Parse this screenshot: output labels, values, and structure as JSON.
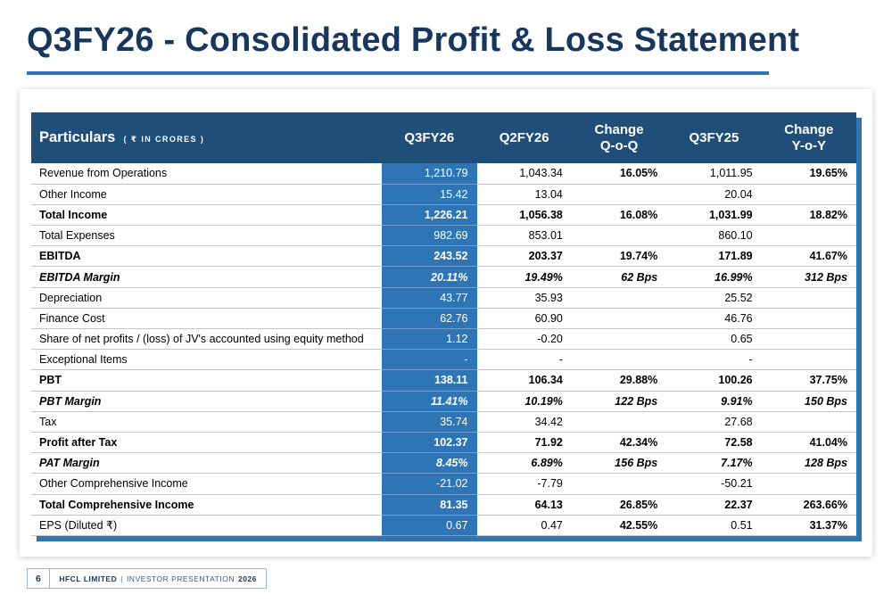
{
  "title": "Q3FY26 - Consolidated Profit & Loss Statement",
  "table": {
    "header": {
      "particulars": "Particulars",
      "unit": "( ₹ IN CRORES )",
      "columns": [
        "Q3FY26",
        "Q2FY26",
        "Change\nQ-o-Q",
        "Q3FY25",
        "Change\nY-o-Y"
      ]
    },
    "rows": [
      {
        "label": "Revenue from Operations",
        "q3fy26": "1,210.79",
        "q2fy26": "1,043.34",
        "change_qoq": "16.05%",
        "q3fy25": "1,011.95",
        "change_yoy": "19.65%",
        "bold": false,
        "italic": false
      },
      {
        "label": "Other Income",
        "q3fy26": "15.42",
        "q2fy26": "13.04",
        "change_qoq": "",
        "q3fy25": "20.04",
        "change_yoy": "",
        "bold": false,
        "italic": false
      },
      {
        "label": "Total Income",
        "q3fy26": "1,226.21",
        "q2fy26": "1,056.38",
        "change_qoq": "16.08%",
        "q3fy25": "1,031.99",
        "change_yoy": "18.82%",
        "bold": true,
        "italic": false
      },
      {
        "label": "Total Expenses",
        "q3fy26": "982.69",
        "q2fy26": "853.01",
        "change_qoq": "",
        "q3fy25": "860.10",
        "change_yoy": "",
        "bold": false,
        "italic": false
      },
      {
        "label": "EBITDA",
        "q3fy26": "243.52",
        "q2fy26": "203.37",
        "change_qoq": "19.74%",
        "q3fy25": "171.89",
        "change_yoy": "41.67%",
        "bold": true,
        "italic": false
      },
      {
        "label": "EBITDA Margin",
        "q3fy26": "20.11%",
        "q2fy26": "19.49%",
        "change_qoq": "62 Bps",
        "q3fy25": "16.99%",
        "change_yoy": "312 Bps",
        "bold": true,
        "italic": true
      },
      {
        "label": "Depreciation",
        "q3fy26": "43.77",
        "q2fy26": "35.93",
        "change_qoq": "",
        "q3fy25": "25.52",
        "change_yoy": "",
        "bold": false,
        "italic": false
      },
      {
        "label": "Finance Cost",
        "q3fy26": "62.76",
        "q2fy26": "60.90",
        "change_qoq": "",
        "q3fy25": "46.76",
        "change_yoy": "",
        "bold": false,
        "italic": false
      },
      {
        "label": "Share of net profits / (loss) of JV's accounted using equity method",
        "q3fy26": "1.12",
        "q2fy26": "-0.20",
        "change_qoq": "",
        "q3fy25": "0.65",
        "change_yoy": "",
        "bold": false,
        "italic": false
      },
      {
        "label": "Exceptional Items",
        "q3fy26": "-",
        "q2fy26": "-",
        "change_qoq": "",
        "q3fy25": "-",
        "change_yoy": "",
        "bold": false,
        "italic": false
      },
      {
        "label": "PBT",
        "q3fy26": "138.11",
        "q2fy26": "106.34",
        "change_qoq": "29.88%",
        "q3fy25": "100.26",
        "change_yoy": "37.75%",
        "bold": true,
        "italic": false
      },
      {
        "label": "PBT Margin",
        "q3fy26": "11.41%",
        "q2fy26": "10.19%",
        "change_qoq": "122 Bps",
        "q3fy25": "9.91%",
        "change_yoy": "150 Bps",
        "bold": true,
        "italic": true
      },
      {
        "label": "Tax",
        "q3fy26": "35.74",
        "q2fy26": "34.42",
        "change_qoq": "",
        "q3fy25": "27.68",
        "change_yoy": "",
        "bold": false,
        "italic": false
      },
      {
        "label": "Profit after Tax",
        "q3fy26": "102.37",
        "q2fy26": "71.92",
        "change_qoq": "42.34%",
        "q3fy25": "72.58",
        "change_yoy": "41.04%",
        "bold": true,
        "italic": false
      },
      {
        "label": "PAT Margin",
        "q3fy26": "8.45%",
        "q2fy26": "6.89%",
        "change_qoq": "156 Bps",
        "q3fy25": "7.17%",
        "change_yoy": "128 Bps",
        "bold": true,
        "italic": true
      },
      {
        "label": "Other Comprehensive Income",
        "q3fy26": "-21.02",
        "q2fy26": "-7.79",
        "change_qoq": "",
        "q3fy25": "-50.21",
        "change_yoy": "",
        "bold": false,
        "italic": false
      },
      {
        "label": "Total Comprehensive Income",
        "q3fy26": "81.35",
        "q2fy26": "64.13",
        "change_qoq": "26.85%",
        "q3fy25": "22.37",
        "change_yoy": "263.66%",
        "bold": true,
        "italic": false
      },
      {
        "label": "EPS (Diluted ₹)",
        "q3fy26": "0.67",
        "q2fy26": "0.47",
        "change_qoq": "42.55%",
        "q3fy25": "0.51",
        "change_yoy": "31.37%",
        "bold": false,
        "italic": false
      }
    ]
  },
  "footer": {
    "page_number": "6",
    "company": "HFCL LIMITED",
    "separator": "|",
    "presentation": "INVESTOR PRESENTATION",
    "year": "2026"
  },
  "colors": {
    "title-color": "#17375E",
    "header-bg": "#1F4E79",
    "hl": "#2E75B6",
    "row-border": "#C6C6C6",
    "footer-border": "#8FBADC"
  }
}
